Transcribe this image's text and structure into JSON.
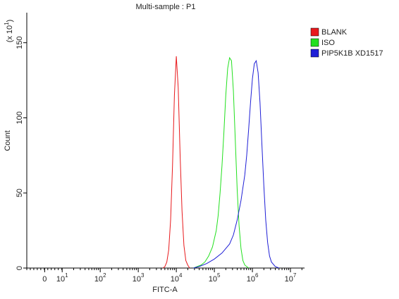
{
  "chart_data": {
    "type": "line",
    "title": "Multi-sample : P1",
    "xlabel": "FITC-A",
    "ylabel": "Count",
    "y_multiplier": {
      "label": "(x 10",
      "sup": "1",
      "close": ")"
    },
    "xscale": "log10 decades",
    "xlim": [
      0.07,
      7.37
    ],
    "ylim": [
      0,
      170
    ],
    "xticks": [
      {
        "value": 0.54,
        "label": "0"
      },
      {
        "value": 1,
        "label": "10",
        "sup": "1"
      },
      {
        "value": 2,
        "label": "10",
        "sup": "2"
      },
      {
        "value": 3,
        "label": "10",
        "sup": "3"
      },
      {
        "value": 4,
        "label": "10",
        "sup": "4"
      },
      {
        "value": 5,
        "label": "10",
        "sup": "5"
      },
      {
        "value": 6,
        "label": "10",
        "sup": "6"
      },
      {
        "value": 7,
        "label": "10",
        "sup": "7"
      }
    ],
    "yticks": [
      0,
      50,
      100,
      150
    ],
    "minor_ticks": true,
    "legend": "right",
    "series": [
      {
        "name": "BLANK",
        "color": "#e8191c",
        "x": [
          3.65,
          3.7,
          3.75,
          3.8,
          3.85,
          3.9,
          3.95,
          4.0,
          4.05,
          4.1,
          4.15,
          4.2,
          4.25,
          4.3,
          4.35
        ],
        "values": [
          0,
          1,
          4,
          12,
          32,
          68,
          115,
          141,
          120,
          75,
          38,
          15,
          5,
          2,
          0
        ]
      },
      {
        "name": "ISO",
        "color": "#22e01e",
        "x": [
          4.45,
          4.55,
          4.65,
          4.75,
          4.85,
          4.95,
          5.05,
          5.1,
          5.15,
          5.2,
          5.25,
          5.3,
          5.35,
          5.4,
          5.45,
          5.5,
          5.55,
          5.6,
          5.65,
          5.7,
          5.75,
          5.8,
          5.9
        ],
        "values": [
          0,
          1,
          2,
          4,
          8,
          14,
          25,
          35,
          50,
          68,
          90,
          115,
          133,
          140,
          138,
          118,
          85,
          52,
          28,
          13,
          5,
          2,
          0
        ]
      },
      {
        "name": "PIP5K1B XD1517",
        "color": "#1f1fd6",
        "x": [
          4.45,
          4.6,
          4.8,
          5.0,
          5.2,
          5.4,
          5.5,
          5.6,
          5.7,
          5.8,
          5.85,
          5.9,
          5.95,
          6.0,
          6.05,
          6.1,
          6.15,
          6.2,
          6.25,
          6.3,
          6.35,
          6.4,
          6.45,
          6.5,
          6.6,
          6.7
        ],
        "values": [
          0,
          1,
          3,
          6,
          10,
          16,
          22,
          32,
          45,
          62,
          75,
          92,
          110,
          126,
          136,
          138,
          130,
          110,
          82,
          55,
          32,
          17,
          8,
          4,
          1,
          0
        ]
      }
    ]
  }
}
